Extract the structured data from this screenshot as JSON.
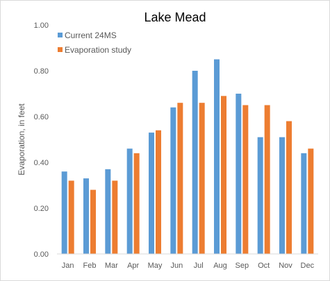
{
  "chart_data": {
    "type": "bar",
    "title": "Lake Mead",
    "xlabel": "",
    "ylabel": "Evaporation, in feet",
    "ylim": [
      0,
      1.0
    ],
    "yticks": [
      "0.00",
      "0.20",
      "0.40",
      "0.60",
      "0.80",
      "1.00"
    ],
    "categories": [
      "Jan",
      "Feb",
      "Mar",
      "Apr",
      "May",
      "Jun",
      "Jul",
      "Aug",
      "Sep",
      "Oct",
      "Nov",
      "Dec"
    ],
    "series": [
      {
        "name": "Current 24MS",
        "color": "#5b9bd5",
        "values": [
          0.36,
          0.33,
          0.37,
          0.46,
          0.53,
          0.64,
          0.8,
          0.85,
          0.7,
          0.51,
          0.51,
          0.44
        ]
      },
      {
        "name": "Evaporation study",
        "color": "#ed7d31",
        "values": [
          0.32,
          0.28,
          0.32,
          0.44,
          0.54,
          0.66,
          0.66,
          0.69,
          0.65,
          0.65,
          0.58,
          0.46
        ]
      }
    ],
    "grid": false,
    "legend": "top-left"
  }
}
